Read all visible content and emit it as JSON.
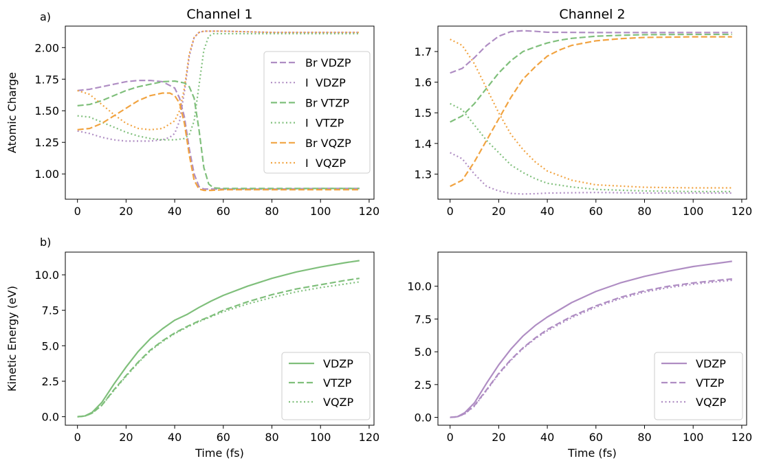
{
  "figure": {
    "panel_labels": [
      "a)",
      "b)"
    ],
    "titles": [
      "Channel 1",
      "Channel 2"
    ]
  },
  "colors": {
    "purple": "#af8dc3",
    "green": "#7fbf7b",
    "orange": "#f1a340"
  },
  "chart_data": [
    {
      "type": "line",
      "panel": "a",
      "title": "Channel 1",
      "xlabel": "",
      "ylabel": "Atomic Charge",
      "xlim": [
        -5,
        122
      ],
      "ylim": [
        0.8,
        2.17
      ],
      "xticks": [
        0,
        20,
        40,
        60,
        80,
        100,
        120
      ],
      "yticks": [
        1.0,
        1.25,
        1.5,
        1.75,
        2.0
      ],
      "ytick_labels": [
        "1.00",
        "1.25",
        "1.50",
        "1.75",
        "2.00"
      ],
      "legend_placement": "right",
      "series": [
        {
          "name": "Br VDZP",
          "color": "purple",
          "dash": "dashed",
          "x": [
            0,
            5,
            10,
            15,
            20,
            25,
            30,
            35,
            40,
            42,
            44,
            46,
            48,
            50,
            52,
            55,
            60,
            80,
            100,
            116
          ],
          "y": [
            1.66,
            1.67,
            1.69,
            1.71,
            1.73,
            1.74,
            1.74,
            1.73,
            1.68,
            1.6,
            1.45,
            1.2,
            1.0,
            0.9,
            0.88,
            0.88,
            0.88,
            0.88,
            0.885,
            0.885
          ]
        },
        {
          "name": "I  VDZP",
          "color": "purple",
          "dash": "dotted",
          "x": [
            0,
            5,
            10,
            15,
            20,
            25,
            30,
            35,
            38,
            40,
            42,
            44,
            46,
            48,
            50,
            52,
            55,
            60,
            80,
            100,
            116
          ],
          "y": [
            1.34,
            1.32,
            1.29,
            1.27,
            1.26,
            1.26,
            1.26,
            1.27,
            1.29,
            1.32,
            1.42,
            1.65,
            1.93,
            2.08,
            2.12,
            2.13,
            2.13,
            2.13,
            2.12,
            2.12,
            2.12
          ]
        },
        {
          "name": "Br VTZP",
          "color": "green",
          "dash": "dashed",
          "x": [
            0,
            5,
            10,
            15,
            20,
            25,
            30,
            35,
            40,
            44,
            46,
            48,
            50,
            52,
            54,
            56,
            60,
            80,
            100,
            116
          ],
          "y": [
            1.54,
            1.55,
            1.58,
            1.62,
            1.66,
            1.69,
            1.71,
            1.73,
            1.735,
            1.72,
            1.69,
            1.6,
            1.35,
            1.05,
            0.92,
            0.89,
            0.885,
            0.885,
            0.885,
            0.885
          ]
        },
        {
          "name": "I  VTZP",
          "color": "green",
          "dash": "dotted",
          "x": [
            0,
            5,
            10,
            15,
            20,
            25,
            30,
            35,
            40,
            44,
            46,
            48,
            50,
            52,
            54,
            56,
            60,
            80,
            100,
            116
          ],
          "y": [
            1.46,
            1.45,
            1.41,
            1.37,
            1.33,
            1.3,
            1.28,
            1.27,
            1.27,
            1.28,
            1.31,
            1.42,
            1.7,
            1.98,
            2.09,
            2.11,
            2.11,
            2.11,
            2.11,
            2.11
          ]
        },
        {
          "name": "Br VQZP",
          "color": "orange",
          "dash": "dashed",
          "x": [
            0,
            5,
            10,
            15,
            20,
            25,
            30,
            35,
            38,
            40,
            42,
            44,
            46,
            48,
            50,
            52,
            55,
            60,
            80,
            100,
            116
          ],
          "y": [
            1.35,
            1.36,
            1.4,
            1.46,
            1.52,
            1.58,
            1.62,
            1.64,
            1.64,
            1.62,
            1.56,
            1.4,
            1.15,
            0.95,
            0.88,
            0.87,
            0.87,
            0.875,
            0.875,
            0.875,
            0.875
          ]
        },
        {
          "name": "I  VQZP",
          "color": "orange",
          "dash": "dotted",
          "x": [
            0,
            5,
            10,
            15,
            20,
            25,
            30,
            35,
            40,
            42,
            44,
            46,
            48,
            50,
            52,
            55,
            60,
            80,
            100,
            116
          ],
          "y": [
            1.66,
            1.63,
            1.55,
            1.47,
            1.4,
            1.36,
            1.35,
            1.36,
            1.42,
            1.5,
            1.68,
            1.95,
            2.08,
            2.12,
            2.13,
            2.13,
            2.13,
            2.12,
            2.12,
            2.12
          ]
        }
      ]
    },
    {
      "type": "line",
      "panel": "a",
      "title": "Channel 2",
      "xlabel": "",
      "ylabel": "",
      "xlim": [
        -5,
        122
      ],
      "ylim": [
        1.218,
        1.783
      ],
      "xticks": [
        0,
        20,
        40,
        60,
        80,
        100,
        120
      ],
      "yticks": [
        1.3,
        1.4,
        1.5,
        1.6,
        1.7
      ],
      "ytick_labels": [
        "1.3",
        "1.4",
        "1.5",
        "1.6",
        "1.7"
      ],
      "series": [
        {
          "name": "Br VDZP",
          "color": "purple",
          "dash": "dashed",
          "x": [
            0,
            5,
            10,
            15,
            20,
            25,
            30,
            35,
            40,
            60,
            80,
            100,
            116
          ],
          "y": [
            1.63,
            1.645,
            1.68,
            1.72,
            1.75,
            1.765,
            1.768,
            1.766,
            1.763,
            1.762,
            1.762,
            1.762,
            1.762
          ]
        },
        {
          "name": "I  VDZP",
          "color": "purple",
          "dash": "dotted",
          "x": [
            0,
            5,
            10,
            15,
            20,
            25,
            30,
            35,
            40,
            60,
            80,
            100,
            116
          ],
          "y": [
            1.37,
            1.35,
            1.3,
            1.26,
            1.245,
            1.237,
            1.235,
            1.236,
            1.238,
            1.24,
            1.238,
            1.238,
            1.238
          ]
        },
        {
          "name": "Br VTZP",
          "color": "green",
          "dash": "dashed",
          "x": [
            0,
            5,
            10,
            15,
            20,
            25,
            30,
            35,
            40,
            45,
            50,
            60,
            70,
            80,
            100,
            116
          ],
          "y": [
            1.47,
            1.49,
            1.53,
            1.58,
            1.63,
            1.67,
            1.7,
            1.715,
            1.728,
            1.737,
            1.743,
            1.75,
            1.753,
            1.755,
            1.756,
            1.756
          ]
        },
        {
          "name": "I  VTZP",
          "color": "green",
          "dash": "dotted",
          "x": [
            0,
            5,
            10,
            15,
            20,
            25,
            30,
            35,
            40,
            50,
            60,
            80,
            100,
            116
          ],
          "y": [
            1.53,
            1.51,
            1.46,
            1.41,
            1.37,
            1.33,
            1.305,
            1.285,
            1.27,
            1.258,
            1.25,
            1.245,
            1.243,
            1.243
          ]
        },
        {
          "name": "Br VQZP",
          "color": "orange",
          "dash": "dashed",
          "x": [
            0,
            5,
            10,
            15,
            20,
            25,
            30,
            35,
            40,
            45,
            50,
            60,
            70,
            80,
            100,
            116
          ],
          "y": [
            1.26,
            1.28,
            1.34,
            1.41,
            1.48,
            1.55,
            1.61,
            1.65,
            1.685,
            1.705,
            1.72,
            1.735,
            1.742,
            1.746,
            1.748,
            1.748
          ]
        },
        {
          "name": "I  VQZP",
          "color": "orange",
          "dash": "dotted",
          "x": [
            0,
            5,
            10,
            15,
            20,
            25,
            30,
            35,
            40,
            50,
            60,
            80,
            100,
            116
          ],
          "y": [
            1.74,
            1.72,
            1.66,
            1.58,
            1.5,
            1.43,
            1.38,
            1.34,
            1.31,
            1.28,
            1.265,
            1.257,
            1.255,
            1.255
          ]
        }
      ]
    },
    {
      "type": "line",
      "panel": "b",
      "title": "",
      "xlabel": "Time (fs)",
      "ylabel": "Kinetic Energy (eV)",
      "xlim": [
        -5,
        122
      ],
      "ylim": [
        -0.6,
        11.6
      ],
      "xticks": [
        0,
        20,
        40,
        60,
        80,
        100,
        120
      ],
      "yticks": [
        0,
        2.5,
        5,
        7.5,
        10
      ],
      "ytick_labels": [
        "0.0",
        "2.5",
        "5.0",
        "7.5",
        "10.0"
      ],
      "legend_placement": "lower right",
      "series": [
        {
          "name": "VDZP",
          "color": "green",
          "dash": "solid",
          "x": [
            0,
            3,
            6,
            10,
            15,
            20,
            25,
            30,
            35,
            40,
            45,
            48,
            50,
            55,
            60,
            70,
            80,
            90,
            100,
            110,
            116
          ],
          "y": [
            0.0,
            0.05,
            0.3,
            1.0,
            2.3,
            3.5,
            4.6,
            5.5,
            6.2,
            6.8,
            7.2,
            7.5,
            7.7,
            8.15,
            8.55,
            9.2,
            9.75,
            10.2,
            10.55,
            10.85,
            11.0
          ]
        },
        {
          "name": "VTZP",
          "color": "green",
          "dash": "dashed",
          "x": [
            0,
            3,
            6,
            10,
            15,
            20,
            25,
            30,
            35,
            40,
            45,
            50,
            55,
            60,
            70,
            80,
            90,
            100,
            110,
            116
          ],
          "y": [
            0.0,
            0.04,
            0.25,
            0.8,
            1.9,
            2.9,
            3.85,
            4.7,
            5.35,
            5.9,
            6.35,
            6.75,
            7.1,
            7.5,
            8.1,
            8.6,
            9.0,
            9.3,
            9.6,
            9.75
          ]
        },
        {
          "name": "VQZP",
          "color": "green",
          "dash": "dotted",
          "x": [
            0,
            3,
            6,
            10,
            15,
            20,
            25,
            30,
            35,
            40,
            45,
            50,
            55,
            60,
            70,
            80,
            90,
            100,
            110,
            116
          ],
          "y": [
            0.0,
            0.04,
            0.25,
            0.8,
            1.85,
            2.85,
            3.8,
            4.65,
            5.3,
            5.85,
            6.3,
            6.7,
            7.05,
            7.4,
            7.95,
            8.4,
            8.8,
            9.1,
            9.35,
            9.5
          ]
        }
      ]
    },
    {
      "type": "line",
      "panel": "b",
      "title": "",
      "xlabel": "Time (fs)",
      "ylabel": "",
      "xlim": [
        -5,
        122
      ],
      "ylim": [
        -0.6,
        12.6
      ],
      "xticks": [
        0,
        20,
        40,
        60,
        80,
        100,
        120
      ],
      "yticks": [
        0,
        2.5,
        5,
        7.5,
        10
      ],
      "ytick_labels": [
        "0.0",
        "2.5",
        "5.0",
        "7.5",
        "10.0"
      ],
      "legend_placement": "lower right",
      "series": [
        {
          "name": "VDZP",
          "color": "purple",
          "dash": "solid",
          "x": [
            0,
            3,
            6,
            10,
            15,
            20,
            25,
            30,
            35,
            40,
            50,
            60,
            70,
            80,
            90,
            100,
            110,
            116
          ],
          "y": [
            0.0,
            0.05,
            0.35,
            1.1,
            2.6,
            4.0,
            5.2,
            6.2,
            7.0,
            7.65,
            8.75,
            9.6,
            10.25,
            10.75,
            11.15,
            11.5,
            11.75,
            11.9
          ]
        },
        {
          "name": "VTZP",
          "color": "purple",
          "dash": "dashed",
          "x": [
            0,
            3,
            6,
            10,
            15,
            20,
            25,
            30,
            35,
            40,
            50,
            60,
            70,
            80,
            90,
            100,
            110,
            116
          ],
          "y": [
            0.0,
            0.04,
            0.28,
            0.9,
            2.1,
            3.35,
            4.4,
            5.3,
            6.05,
            6.7,
            7.7,
            8.5,
            9.15,
            9.65,
            10.0,
            10.25,
            10.45,
            10.55
          ]
        },
        {
          "name": "VQZP",
          "color": "purple",
          "dash": "dotted",
          "x": [
            0,
            3,
            6,
            10,
            15,
            20,
            25,
            30,
            35,
            40,
            50,
            60,
            70,
            80,
            90,
            100,
            110,
            116
          ],
          "y": [
            0.0,
            0.04,
            0.26,
            0.85,
            2.05,
            3.3,
            4.35,
            5.25,
            6.0,
            6.6,
            7.6,
            8.4,
            9.05,
            9.55,
            9.9,
            10.15,
            10.35,
            10.45
          ]
        }
      ]
    }
  ]
}
